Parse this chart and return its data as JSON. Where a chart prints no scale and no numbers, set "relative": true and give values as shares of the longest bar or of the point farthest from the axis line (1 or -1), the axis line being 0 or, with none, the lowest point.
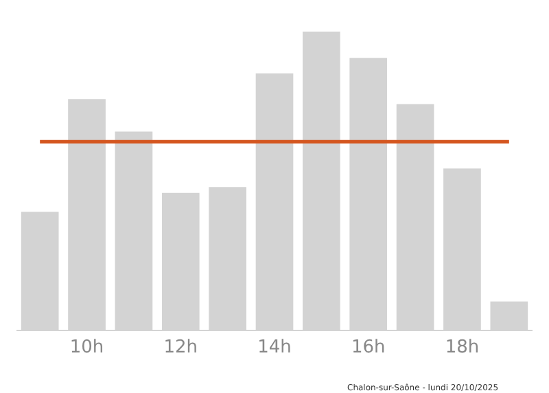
{
  "chart_data": {
    "type": "bar",
    "relative": true,
    "categories": [
      null,
      "10h",
      null,
      "12h",
      null,
      "14h",
      null,
      "16h",
      null,
      "18h",
      null
    ],
    "values": [
      0.396,
      0.774,
      0.665,
      0.459,
      0.479,
      0.86,
      1,
      0.912,
      0.757,
      0.541,
      0.095
    ],
    "color": "#d3d3d3",
    "ref_lines": [
      {
        "axis": "y",
        "value": 0.631,
        "color": "#d4561f"
      }
    ],
    "annotations": [
      "Chalon-sur-Saône - lundi 20/10/2025"
    ]
  }
}
